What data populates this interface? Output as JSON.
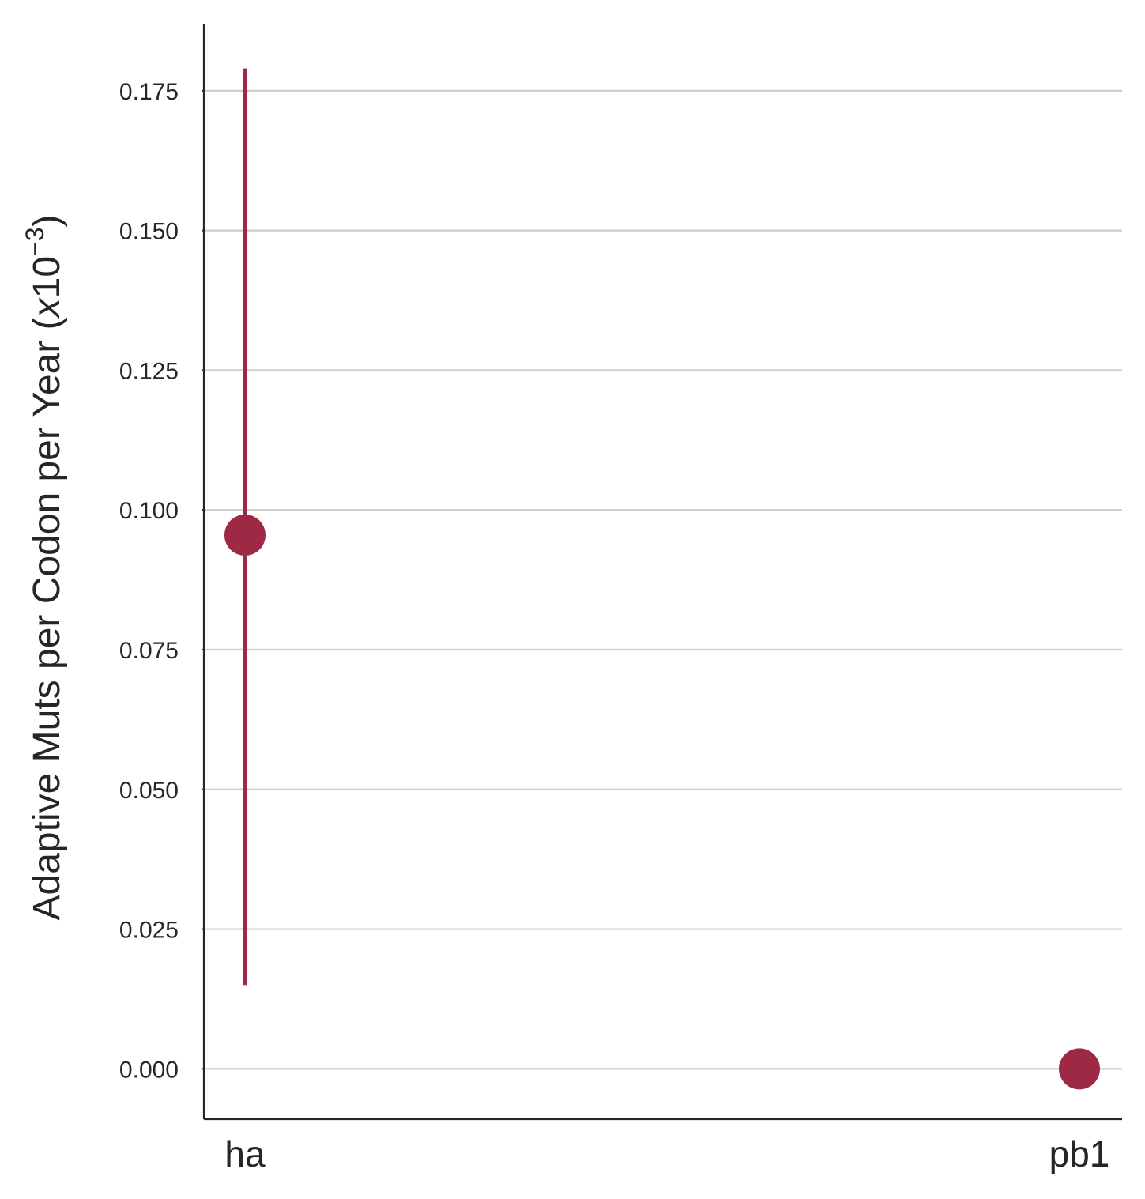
{
  "chart_data": {
    "type": "scatter",
    "categories": [
      "ha",
      "pb1"
    ],
    "values": [
      0.0955,
      0.0
    ],
    "error_low": [
      0.015,
      null
    ],
    "error_high": [
      0.179,
      null
    ],
    "ylabel": "Adaptive Muts per Codon per Year (",
    "ylabel_italic": "x",
    "ylabel_base": "10",
    "ylabel_exponent": "−3",
    "ylabel_close": ")",
    "ylim": [
      -0.009,
      0.187
    ],
    "yticks": [
      0.0,
      0.025,
      0.05,
      0.075,
      0.1,
      0.125,
      0.15,
      0.175
    ],
    "ytick_labels": [
      "0.000",
      "0.025",
      "0.050",
      "0.075",
      "0.100",
      "0.125",
      "0.150",
      "0.175"
    ],
    "grid": "horizontal",
    "color": "#9e2944",
    "grid_color": "#cccccc",
    "axis_color": "#262626"
  }
}
